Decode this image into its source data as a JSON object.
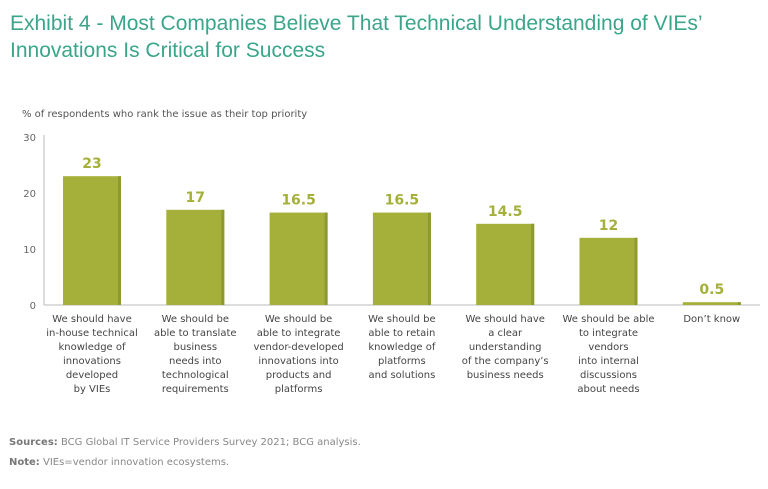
{
  "title": "Exhibit 4 - Most Companies Believe That Technical Understanding of VIEs’ Innovations Is Critical for Success",
  "chart_data": {
    "type": "bar",
    "ylabel": "% of respondents who rank the issue as their top priority",
    "ylim": [
      0,
      30
    ],
    "yticks": [
      "0",
      "10",
      "20",
      "30"
    ],
    "categories": [
      "We should have in-house technical knowledge of innovations developed by VIEs",
      "We should be able to translate business needs into technological requirements",
      "We should be able to integrate vendor-developed innovations into products and platforms",
      "We should be able to retain knowledge of platforms and solutions",
      "We should have a clear understanding of the company’s business needs",
      "We should be able to integrate vendors into internal discussions about needs",
      "Don’t know"
    ],
    "category_lines": [
      [
        "We should have",
        "in-house technical",
        "knowledge of",
        "innovations",
        "developed",
        "by VIEs"
      ],
      [
        "We should be",
        "able to translate",
        "business",
        "needs into",
        "technological",
        "requirements"
      ],
      [
        "We should be",
        "able to integrate",
        "vendor-developed",
        "innovations into",
        "products and",
        "platforms"
      ],
      [
        "We should be",
        "able to retain",
        "knowledge of",
        "platforms",
        "and solutions"
      ],
      [
        "We should have",
        "a clear understanding",
        "of the company’s",
        "business needs"
      ],
      [
        "We should be able",
        "to integrate",
        "vendors",
        "into internal",
        "discussions",
        "about needs"
      ],
      [
        "Don’t know"
      ]
    ],
    "values": [
      23,
      17,
      16.5,
      16.5,
      14.5,
      12,
      0.5
    ],
    "value_labels": [
      "23",
      "17",
      "16.5",
      "16.5",
      "14.5",
      "12",
      "0.5"
    ],
    "bar_color": "#a5b03a"
  },
  "footer": {
    "sources_label": "Sources:",
    "sources": " BCG Global IT Service Providers Survey 2021; BCG analysis.",
    "note_label": "Note:",
    "note": " VIEs=vendor innovation ecosystems."
  }
}
